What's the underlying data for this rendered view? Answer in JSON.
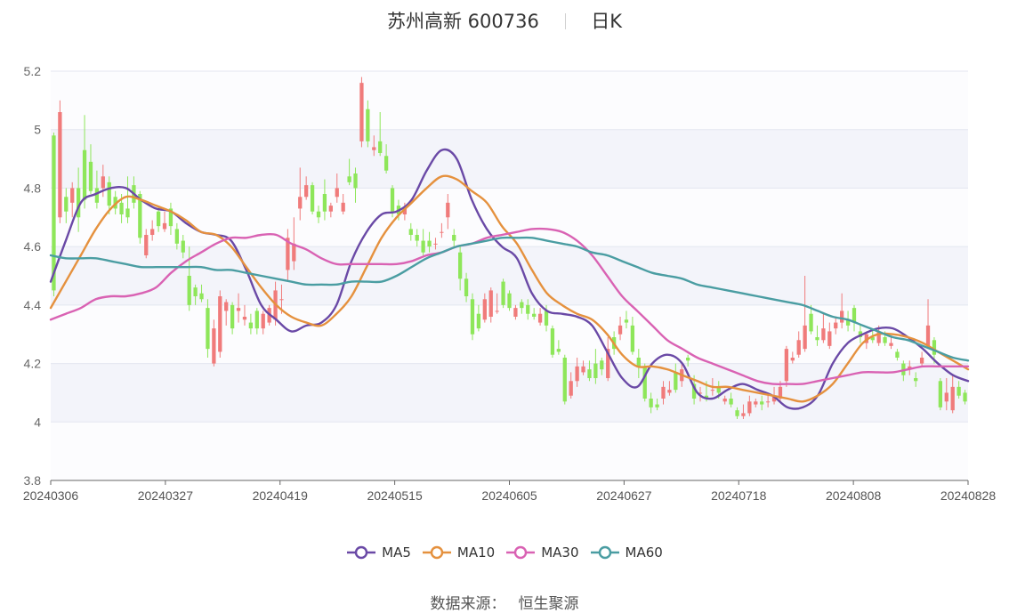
{
  "header": {
    "stock": "苏州高新 600736",
    "period": "日K"
  },
  "source": {
    "label": "数据来源：",
    "value": "恒生聚源"
  },
  "colors": {
    "up": "#f07b7b",
    "down": "#8ee65a",
    "MA5": "#6a49a6",
    "MA10": "#e5913e",
    "MA30": "#d962b3",
    "MA60": "#4a9da2",
    "band": "#f3f4fa",
    "grid": "#e3e6f0",
    "axis": "#888888"
  },
  "chart_data": {
    "type": "candlestick",
    "ylim": [
      3.8,
      5.2
    ],
    "yticks": [
      "3.8",
      "4",
      "4.2",
      "4.4",
      "4.6",
      "4.8",
      "5",
      "5.2"
    ],
    "xticks": [
      "20240306",
      "20240327",
      "20240419",
      "20240515",
      "20240605",
      "20240627",
      "20240718",
      "20240808",
      "20240828"
    ],
    "legend_position": "bottom",
    "series": [
      {
        "name": "MA5",
        "values": [
          4.48,
          4.62,
          4.75,
          4.78,
          4.8,
          4.8,
          4.76,
          4.73,
          4.72,
          4.68,
          4.65,
          4.64,
          4.62,
          4.52,
          4.4,
          4.35,
          4.31,
          4.33,
          4.34,
          4.4,
          4.55,
          4.65,
          4.71,
          4.72,
          4.76,
          4.86,
          4.93,
          4.9,
          4.76,
          4.66,
          4.6,
          4.56,
          4.44,
          4.38,
          4.37,
          4.36,
          4.33,
          4.24,
          4.15,
          4.12,
          4.2,
          4.23,
          4.2,
          4.1,
          4.08,
          4.11,
          4.13,
          4.11,
          4.09,
          4.05,
          4.05,
          4.09,
          4.2,
          4.27,
          4.3,
          4.32,
          4.32,
          4.29,
          4.25,
          4.2,
          4.16,
          4.14
        ]
      },
      {
        "name": "MA10",
        "values": [
          4.39,
          4.48,
          4.57,
          4.66,
          4.73,
          4.77,
          4.76,
          4.74,
          4.72,
          4.69,
          4.65,
          4.64,
          4.6,
          4.53,
          4.46,
          4.4,
          4.36,
          4.34,
          4.33,
          4.37,
          4.43,
          4.53,
          4.63,
          4.7,
          4.75,
          4.8,
          4.84,
          4.83,
          4.79,
          4.75,
          4.67,
          4.61,
          4.52,
          4.44,
          4.4,
          4.37,
          4.35,
          4.3,
          4.23,
          4.19,
          4.19,
          4.18,
          4.16,
          4.14,
          4.12,
          4.12,
          4.11,
          4.1,
          4.09,
          4.08,
          4.07,
          4.09,
          4.13,
          4.2,
          4.27,
          4.3,
          4.3,
          4.29,
          4.27,
          4.24,
          4.21,
          4.18
        ]
      },
      {
        "name": "MA30",
        "values": [
          4.35,
          4.37,
          4.39,
          4.42,
          4.43,
          4.43,
          4.44,
          4.46,
          4.51,
          4.55,
          4.58,
          4.61,
          4.63,
          4.63,
          4.64,
          4.64,
          4.61,
          4.59,
          4.56,
          4.54,
          4.54,
          4.54,
          4.54,
          4.54,
          4.55,
          4.57,
          4.58,
          4.6,
          4.61,
          4.63,
          4.64,
          4.65,
          4.66,
          4.66,
          4.65,
          4.62,
          4.57,
          4.5,
          4.43,
          4.38,
          4.33,
          4.28,
          4.25,
          4.22,
          4.2,
          4.18,
          4.16,
          4.14,
          4.13,
          4.13,
          4.13,
          4.14,
          4.15,
          4.16,
          4.17,
          4.17,
          4.17,
          4.18,
          4.19,
          4.19,
          4.19,
          4.19
        ]
      },
      {
        "name": "MA60",
        "values": [
          4.57,
          4.56,
          4.56,
          4.56,
          4.55,
          4.54,
          4.53,
          4.53,
          4.53,
          4.53,
          4.53,
          4.52,
          4.52,
          4.51,
          4.5,
          4.49,
          4.48,
          4.47,
          4.47,
          4.47,
          4.48,
          4.48,
          4.48,
          4.5,
          4.53,
          4.56,
          4.58,
          4.6,
          4.61,
          4.62,
          4.63,
          4.63,
          4.63,
          4.62,
          4.61,
          4.6,
          4.58,
          4.57,
          4.55,
          4.53,
          4.51,
          4.5,
          4.49,
          4.47,
          4.46,
          4.45,
          4.44,
          4.43,
          4.42,
          4.41,
          4.4,
          4.38,
          4.36,
          4.35,
          4.33,
          4.31,
          4.29,
          4.28,
          4.26,
          4.24,
          4.22,
          4.21
        ]
      }
    ],
    "candles": [
      [
        4.98,
        4.45,
        4.99,
        4.43
      ],
      [
        4.7,
        5.06,
        5.1,
        4.68
      ],
      [
        4.77,
        4.72,
        4.8,
        4.68
      ],
      [
        4.75,
        4.8,
        4.82,
        4.7
      ],
      [
        4.8,
        4.7,
        4.87,
        4.65
      ],
      [
        4.93,
        4.76,
        5.05,
        4.73
      ],
      [
        4.89,
        4.79,
        4.95,
        4.78
      ],
      [
        4.8,
        4.75,
        4.86,
        4.73
      ],
      [
        4.8,
        4.84,
        4.88,
        4.77
      ],
      [
        4.82,
        4.74,
        4.84,
        4.71
      ],
      [
        4.77,
        4.73,
        4.79,
        4.71
      ],
      [
        4.75,
        4.71,
        4.78,
        4.68
      ],
      [
        4.73,
        4.7,
        4.84,
        4.68
      ],
      [
        4.81,
        4.75,
        4.84,
        4.73
      ],
      [
        4.78,
        4.63,
        4.79,
        4.61
      ],
      [
        4.57,
        4.64,
        4.66,
        4.56
      ],
      [
        4.64,
        4.66,
        4.69,
        4.62
      ],
      [
        4.72,
        4.67,
        4.74,
        4.65
      ],
      [
        4.66,
        4.68,
        4.72,
        4.65
      ],
      [
        4.73,
        4.67,
        4.75,
        4.64
      ],
      [
        4.66,
        4.61,
        4.68,
        4.59
      ],
      [
        4.62,
        4.58,
        4.64,
        4.56
      ],
      [
        4.5,
        4.4,
        4.6,
        4.38
      ],
      [
        4.46,
        4.43,
        4.47,
        4.4
      ],
      [
        4.44,
        4.42,
        4.47,
        4.41
      ],
      [
        4.39,
        4.25,
        4.42,
        4.22
      ],
      [
        4.2,
        4.32,
        4.35,
        4.19
      ],
      [
        4.24,
        4.43,
        4.45,
        4.22
      ],
      [
        4.38,
        4.41,
        4.42,
        4.33
      ],
      [
        4.4,
        4.32,
        4.41,
        4.3
      ],
      [
        4.38,
        4.39,
        4.44,
        4.34
      ],
      [
        4.35,
        4.36,
        4.4,
        4.33
      ],
      [
        4.34,
        4.32,
        4.37,
        4.3
      ],
      [
        4.38,
        4.32,
        4.39,
        4.3
      ],
      [
        4.32,
        4.37,
        4.38,
        4.3
      ],
      [
        4.34,
        4.39,
        4.4,
        4.33
      ],
      [
        4.35,
        4.45,
        4.48,
        4.33
      ],
      [
        4.42,
        4.42,
        4.47,
        4.37
      ],
      [
        4.52,
        4.63,
        4.66,
        4.48
      ],
      [
        4.55,
        4.61,
        4.7,
        4.52
      ],
      [
        4.73,
        4.77,
        4.87,
        4.69
      ],
      [
        4.77,
        4.81,
        4.84,
        4.76
      ],
      [
        4.81,
        4.72,
        4.82,
        4.71
      ],
      [
        4.72,
        4.7,
        4.74,
        4.68
      ],
      [
        4.78,
        4.72,
        4.83,
        4.69
      ],
      [
        4.72,
        4.74,
        4.75,
        4.7
      ],
      [
        4.77,
        4.8,
        4.85,
        4.75
      ],
      [
        4.72,
        4.75,
        4.78,
        4.71
      ],
      [
        4.84,
        4.82,
        4.9,
        4.81
      ],
      [
        4.85,
        4.8,
        4.87,
        4.75
      ],
      [
        4.96,
        5.16,
        5.18,
        4.94
      ],
      [
        5.07,
        4.96,
        5.1,
        4.94
      ],
      [
        4.93,
        4.94,
        4.98,
        4.91
      ],
      [
        4.96,
        4.92,
        5.06,
        4.91
      ],
      [
        4.91,
        4.86,
        4.95,
        4.85
      ],
      [
        4.8,
        4.72,
        4.81,
        4.7
      ],
      [
        4.74,
        4.71,
        4.76,
        4.69
      ],
      [
        4.71,
        4.73,
        4.75,
        4.69
      ],
      [
        4.66,
        4.64,
        4.68,
        4.62
      ],
      [
        4.64,
        4.62,
        4.66,
        4.6
      ],
      [
        4.62,
        4.58,
        4.66,
        4.57
      ],
      [
        4.62,
        4.6,
        4.65,
        4.58
      ],
      [
        4.61,
        4.61,
        4.63,
        4.59
      ],
      [
        4.65,
        4.65,
        4.68,
        4.63
      ],
      [
        4.7,
        4.75,
        4.78,
        4.66
      ],
      [
        4.64,
        4.62,
        4.66,
        4.6
      ],
      [
        4.58,
        4.49,
        4.6,
        4.45
      ],
      [
        4.49,
        4.43,
        4.51,
        4.41
      ],
      [
        4.42,
        4.3,
        4.44,
        4.28
      ],
      [
        4.37,
        4.32,
        4.4,
        4.31
      ],
      [
        4.35,
        4.42,
        4.44,
        4.34
      ],
      [
        4.36,
        4.45,
        4.46,
        4.34
      ],
      [
        4.38,
        4.38,
        4.44,
        4.37
      ],
      [
        4.48,
        4.4,
        4.49,
        4.39
      ],
      [
        4.44,
        4.39,
        4.45,
        4.38
      ],
      [
        4.36,
        4.39,
        4.4,
        4.35
      ],
      [
        4.41,
        4.39,
        4.42,
        4.37
      ],
      [
        4.4,
        4.37,
        4.42,
        4.35
      ],
      [
        4.37,
        4.36,
        4.39,
        4.35
      ],
      [
        4.34,
        4.37,
        4.39,
        4.33
      ],
      [
        4.38,
        4.33,
        4.4,
        4.31
      ],
      [
        4.32,
        4.23,
        4.33,
        4.22
      ],
      [
        4.25,
        4.24,
        4.28,
        4.23
      ],
      [
        4.22,
        4.07,
        4.23,
        4.06
      ],
      [
        4.09,
        4.14,
        4.17,
        4.08
      ],
      [
        4.14,
        4.19,
        4.22,
        4.12
      ],
      [
        4.17,
        4.19,
        4.21,
        4.16
      ],
      [
        4.18,
        4.15,
        4.21,
        4.14
      ],
      [
        4.2,
        4.15,
        4.25,
        4.13
      ],
      [
        4.21,
        4.18,
        4.22,
        4.16
      ],
      [
        4.15,
        4.25,
        4.29,
        4.14
      ],
      [
        4.29,
        4.25,
        4.31,
        4.23
      ],
      [
        4.3,
        4.33,
        4.36,
        4.28
      ],
      [
        4.35,
        4.34,
        4.38,
        4.32
      ],
      [
        4.33,
        4.24,
        4.36,
        4.23
      ],
      [
        4.22,
        4.19,
        4.25,
        4.15
      ],
      [
        4.19,
        4.08,
        4.2,
        4.07
      ],
      [
        4.08,
        4.05,
        4.1,
        4.03
      ],
      [
        4.06,
        4.05,
        4.08,
        4.04
      ],
      [
        4.08,
        4.12,
        4.14,
        4.06
      ],
      [
        4.1,
        4.11,
        4.14,
        4.09
      ],
      [
        4.17,
        4.11,
        4.2,
        4.1
      ],
      [
        4.14,
        4.18,
        4.2,
        4.12
      ],
      [
        4.22,
        4.21,
        4.23,
        4.19
      ],
      [
        4.13,
        4.08,
        4.16,
        4.06
      ],
      [
        4.1,
        4.1,
        4.12,
        4.07
      ],
      [
        4.09,
        4.08,
        4.14,
        4.07
      ],
      [
        4.11,
        4.11,
        4.15,
        4.09
      ],
      [
        4.12,
        4.1,
        4.14,
        4.08
      ],
      [
        4.07,
        4.08,
        4.09,
        4.06
      ],
      [
        4.08,
        4.06,
        4.1,
        4.05
      ],
      [
        4.04,
        4.02,
        4.05,
        4.01
      ],
      [
        4.02,
        4.03,
        4.06,
        4.01
      ],
      [
        4.03,
        4.07,
        4.09,
        4.02
      ],
      [
        4.06,
        4.07,
        4.08,
        4.05
      ],
      [
        4.07,
        4.06,
        4.09,
        4.04
      ],
      [
        4.07,
        4.07,
        4.1,
        4.05
      ],
      [
        4.07,
        4.09,
        4.12,
        4.06
      ],
      [
        4.08,
        4.12,
        4.14,
        4.07
      ],
      [
        4.14,
        4.25,
        4.26,
        4.12
      ],
      [
        4.21,
        4.22,
        4.24,
        4.2
      ],
      [
        4.23,
        4.28,
        4.31,
        4.22
      ],
      [
        4.25,
        4.33,
        4.5,
        4.24
      ],
      [
        4.37,
        4.31,
        4.4,
        4.3
      ],
      [
        4.29,
        4.28,
        4.33,
        4.26
      ],
      [
        4.28,
        4.32,
        4.37,
        4.27
      ],
      [
        4.26,
        4.31,
        4.34,
        4.25
      ],
      [
        4.32,
        4.34,
        4.36,
        4.3
      ],
      [
        4.34,
        4.38,
        4.44,
        4.32
      ],
      [
        4.35,
        4.33,
        4.38,
        4.31
      ],
      [
        4.39,
        4.34,
        4.4,
        4.31
      ],
      [
        4.31,
        4.29,
        4.33,
        4.27
      ],
      [
        4.27,
        4.3,
        4.31,
        4.25
      ],
      [
        4.29,
        4.28,
        4.32,
        4.27
      ],
      [
        4.27,
        4.31,
        4.33,
        4.26
      ],
      [
        4.29,
        4.27,
        4.31,
        4.26
      ],
      [
        4.26,
        4.27,
        4.29,
        4.25
      ],
      [
        4.24,
        4.22,
        4.25,
        4.21
      ],
      [
        4.2,
        4.16,
        4.21,
        4.14
      ],
      [
        4.18,
        4.19,
        4.21,
        4.16
      ],
      [
        4.15,
        4.14,
        4.17,
        4.12
      ],
      [
        4.2,
        4.22,
        4.24,
        4.19
      ],
      [
        4.26,
        4.33,
        4.42,
        4.25
      ],
      [
        4.28,
        4.23,
        4.29,
        4.2
      ],
      [
        4.14,
        4.05,
        4.15,
        4.04
      ],
      [
        4.07,
        4.1,
        4.15,
        4.04
      ],
      [
        4.04,
        4.12,
        4.16,
        4.03
      ],
      [
        4.12,
        4.09,
        4.14,
        4.08
      ],
      [
        4.1,
        4.07,
        4.11,
        4.06
      ]
    ]
  }
}
